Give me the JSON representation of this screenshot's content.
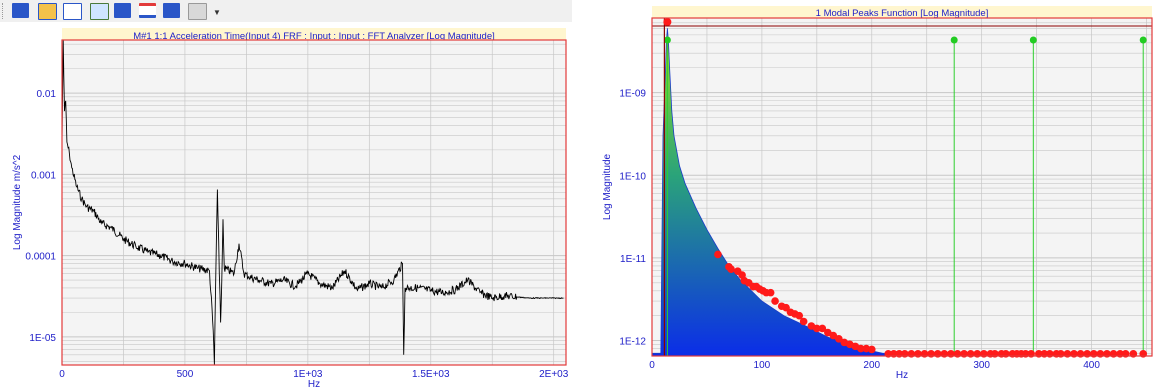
{
  "toolbar": {
    "icons": [
      "magnitude-view-icon",
      "overlay-view-icon",
      "stack-view-icon",
      "list-view-icon",
      "peak-view-icon",
      "lines-view-icon",
      "data-view-icon",
      "plot-options-icon"
    ]
  },
  "colors": {
    "plot_border": "#e23a3a",
    "title_bar": "#fff6cf",
    "title_text": "#1d1dc8",
    "axis_label": "#1d1dc8",
    "grid": "#c7c7c7",
    "plot_bg": "#f4f4f4",
    "trace": "#000000",
    "peak_point": "#ff1a1a",
    "peak_line": "#2ed02e",
    "fill_top": "#99e31e",
    "fill_mid": "#2aa37a",
    "fill_bottom": "#0b2de8"
  },
  "chart_data": [
    {
      "type": "line",
      "title": "M#1 1:1 Acceleration Time(Input 4) FRF : Input : Input : FFT Analyzer [Log Magnitude]",
      "xlabel": "Hz",
      "ylabel": "Log Magnitude m/s^2",
      "xlim": [
        0,
        2050
      ],
      "ylim": [
        4.5e-06,
        0.045
      ],
      "yscale": "log",
      "x_ticks": [
        0,
        500,
        1000,
        1500,
        2000
      ],
      "x_tick_labels": [
        "0",
        "500",
        "1E+03",
        "1.5E+03",
        "2E+03"
      ],
      "y_ticks": [
        0.01,
        0.001,
        0.0001,
        1e-05
      ],
      "y_tick_labels": [
        "0.01",
        "0.001",
        "0.0001",
        "1E-05"
      ],
      "grid": true,
      "series": [
        {
          "x": [
            0,
            5,
            10,
            15,
            20,
            30,
            40,
            60,
            80,
            100,
            130,
            160,
            200,
            250,
            300,
            350,
            400,
            450,
            500,
            550,
            600,
            615,
            620,
            625,
            632,
            640,
            645,
            650,
            655,
            660,
            700,
            720,
            740,
            760,
            800,
            850,
            900,
            950,
            1000,
            1050,
            1100,
            1150,
            1200,
            1250,
            1300,
            1350,
            1385,
            1390,
            1395,
            1400,
            1450,
            1500,
            1550,
            1600,
            1650,
            1700,
            1750,
            1800,
            1850,
            1900,
            2000,
            2040
          ],
          "y": [
            0.0025,
            0.045,
            0.006,
            0.008,
            0.0025,
            0.0018,
            0.0012,
            0.0007,
            0.0005,
            0.0004,
            0.00035,
            0.00025,
            0.00022,
            0.00016,
            0.00013,
            0.00011,
            0.0001,
            8.5e-05,
            8e-05,
            7e-05,
            6.5e-05,
            1.2e-05,
            4.5e-06,
            5e-05,
            0.00065,
            6e-05,
            1.5e-05,
            5e-05,
            0.00028,
            7e-05,
            6e-05,
            0.00014,
            6e-05,
            5.5e-05,
            5e-05,
            4.5e-05,
            5e-05,
            4.2e-05,
            6e-05,
            4.5e-05,
            4e-05,
            6.5e-05,
            3.8e-05,
            4.5e-05,
            4e-05,
            5e-05,
            8e-05,
            6e-06,
            4e-05,
            4e-05,
            4e-05,
            3.7e-05,
            3.5e-05,
            3.8e-05,
            5e-05,
            3.5e-05,
            3e-05,
            3.2e-05,
            3.1e-05,
            3e-05,
            3e-05,
            3e-05
          ]
        }
      ]
    },
    {
      "type": "area",
      "title": "1 Modal Peaks Function [Log Magnitude]",
      "xlabel": "Hz",
      "ylabel": "Log Magnitude",
      "xlim": [
        0,
        455
      ],
      "ylim": [
        6.5e-13,
        8e-09
      ],
      "yscale": "log",
      "x_ticks": [
        0,
        100,
        200,
        300,
        400
      ],
      "x_tick_labels": [
        "0",
        "100",
        "200",
        "300",
        "400"
      ],
      "y_ticks": [
        1e-09,
        1e-10,
        1e-11,
        1e-12
      ],
      "y_tick_labels": [
        "1E-09",
        "1E-10",
        "1E-11",
        "1E-12"
      ],
      "grid": true,
      "curve": {
        "x": [
          0,
          8,
          10,
          12,
          13,
          14,
          15,
          16,
          18,
          20,
          25,
          30,
          40,
          50,
          60,
          70,
          80,
          100,
          120,
          140,
          160,
          180,
          200,
          210,
          215
        ],
        "y": [
          7e-13,
          7e-13,
          3e-10,
          1.5e-09,
          4e-09,
          6e-09,
          4e-09,
          2e-09,
          6e-10,
          3e-10,
          1.3e-10,
          8e-11,
          4e-11,
          2.2e-11,
          1.3e-11,
          8e-12,
          5.5e-12,
          3e-12,
          2e-12,
          1.5e-12,
          1.1e-12,
          9e-13,
          7.5e-13,
          7e-13,
          7e-13
        ]
      },
      "peaks": {
        "x": [
          60,
          70,
          72,
          78,
          82,
          84,
          88,
          92,
          95,
          98,
          101,
          104,
          108,
          112,
          118,
          122,
          126,
          130,
          134,
          138,
          145,
          150,
          155,
          160,
          165,
          170,
          175,
          180,
          185,
          190,
          195,
          200,
          215,
          220,
          225,
          230,
          236,
          242,
          248,
          254,
          260,
          266,
          272,
          278,
          284,
          290,
          296,
          302,
          308,
          312,
          318,
          322,
          328,
          332,
          336,
          340,
          345,
          352,
          357,
          362,
          368,
          372,
          378,
          384,
          390,
          396,
          402,
          408,
          414,
          420,
          426,
          431,
          438,
          447
        ],
        "y": [
          1.1e-11,
          7.8e-12,
          7.3e-12,
          6.9e-12,
          6.2e-12,
          5.3e-12,
          5e-12,
          4.5e-12,
          4.5e-12,
          4.2e-12,
          4e-12,
          3.8e-12,
          3.8e-12,
          3e-12,
          2.6e-12,
          2.5e-12,
          2.2e-12,
          2.1e-12,
          2e-12,
          1.7e-12,
          1.5e-12,
          1.4e-12,
          1.4e-12,
          1.25e-12,
          1.15e-12,
          1.05e-12,
          9.5e-13,
          9e-13,
          8.5e-13,
          8e-13,
          8e-13,
          7.8e-13,
          6.9e-13,
          6.9e-13,
          6.9e-13,
          6.9e-13,
          6.9e-13,
          6.9e-13,
          6.9e-13,
          6.9e-13,
          6.9e-13,
          6.9e-13,
          6.9e-13,
          6.9e-13,
          6.9e-13,
          6.9e-13,
          6.9e-13,
          6.9e-13,
          6.9e-13,
          6.9e-13,
          6.9e-13,
          6.9e-13,
          6.9e-13,
          6.9e-13,
          6.9e-13,
          6.9e-13,
          6.9e-13,
          6.9e-13,
          6.9e-13,
          6.9e-13,
          6.9e-13,
          6.9e-13,
          6.9e-13,
          6.9e-13,
          6.9e-13,
          6.9e-13,
          6.9e-13,
          6.9e-13,
          6.9e-13,
          6.9e-13,
          6.9e-13,
          6.9e-13,
          6.9e-13,
          6.9e-13
        ]
      },
      "markers": {
        "x": [
          14,
          275,
          347,
          447
        ],
        "top_peak_x": 14
      }
    }
  ]
}
